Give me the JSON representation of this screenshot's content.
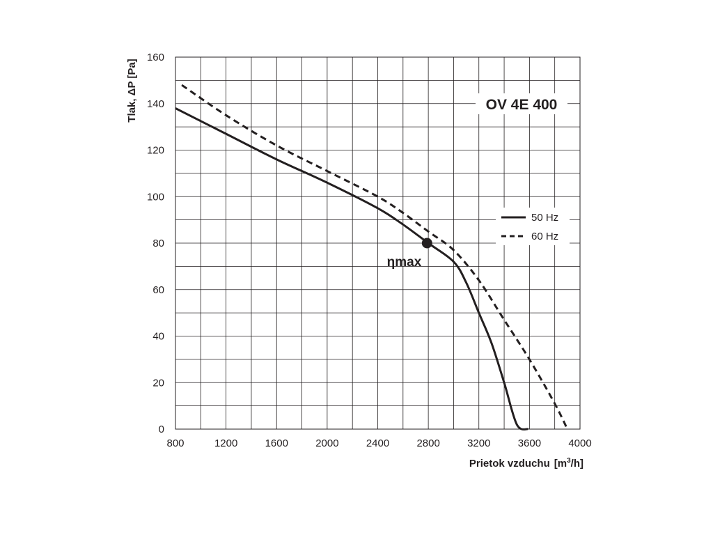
{
  "chart_data": {
    "type": "line",
    "title": "OV 4E 400",
    "xlabel": "Prietok vzduchu",
    "xunit_prefix": "[m",
    "xunit_sup": "3",
    "xunit_suffix": "/h]",
    "ylabel": "Tlak, ΔP [Pa]",
    "xlim": [
      800,
      4000
    ],
    "ylim": [
      0,
      160
    ],
    "x_ticks": [
      800,
      1200,
      1600,
      2000,
      2400,
      2800,
      3200,
      3600,
      4000
    ],
    "y_ticks": [
      0,
      20,
      40,
      60,
      80,
      100,
      120,
      140,
      160
    ],
    "x_minor_step": 200,
    "y_minor_step": 10,
    "grid": true,
    "legend_position": "right",
    "series": [
      {
        "name": "50 Hz",
        "style": "solid",
        "color": "#231f20",
        "points": [
          [
            800,
            138
          ],
          [
            1200,
            127
          ],
          [
            1600,
            116
          ],
          [
            2000,
            106
          ],
          [
            2400,
            95
          ],
          [
            2600,
            88
          ],
          [
            2800,
            80
          ],
          [
            3000,
            72
          ],
          [
            3100,
            63
          ],
          [
            3200,
            50
          ],
          [
            3300,
            37
          ],
          [
            3400,
            20
          ],
          [
            3500,
            2
          ],
          [
            3590,
            0
          ]
        ]
      },
      {
        "name": "60 Hz",
        "style": "dashed",
        "color": "#231f20",
        "points": [
          [
            850,
            148
          ],
          [
            1200,
            135
          ],
          [
            1600,
            122
          ],
          [
            2000,
            111
          ],
          [
            2400,
            100
          ],
          [
            2600,
            93
          ],
          [
            2800,
            85
          ],
          [
            3000,
            77
          ],
          [
            3200,
            64
          ],
          [
            3400,
            47
          ],
          [
            3600,
            30
          ],
          [
            3800,
            11
          ],
          [
            3900,
            0
          ]
        ]
      }
    ],
    "annotation": {
      "label": "ηmax",
      "x": 2790,
      "y": 80
    }
  }
}
